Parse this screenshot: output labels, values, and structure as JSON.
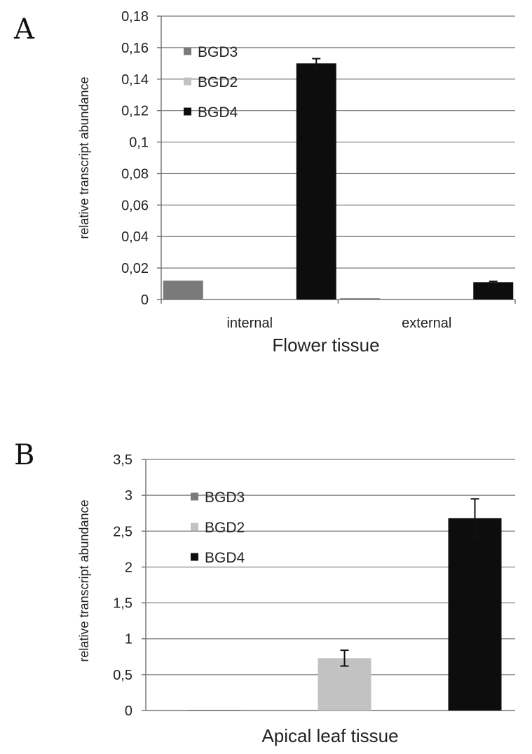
{
  "chart_data": [
    {
      "panel": "A",
      "type": "bar",
      "title": "",
      "xlabel": "Flower tissue",
      "ylabel": "relative transcript abundance",
      "ylim": [
        0,
        0.18
      ],
      "yticks": [
        "0",
        "0,02",
        "0,04",
        "0,06",
        "0,08",
        "0,1",
        "0,12",
        "0,14",
        "0,16",
        "0,18"
      ],
      "categories": [
        "internal",
        "external"
      ],
      "grid": true,
      "legend_position": "top-left",
      "series": [
        {
          "name": "BGD3",
          "color": "#7a7a7a",
          "values": [
            0.012,
            0.0008
          ],
          "errors": [
            0,
            0
          ]
        },
        {
          "name": "BGD2",
          "color": "#c2c2c2",
          "values": [
            0,
            0
          ],
          "errors": [
            0,
            0
          ]
        },
        {
          "name": "BGD4",
          "color": "#0d0d0d",
          "values": [
            0.15,
            0.011
          ],
          "errors": [
            0.003,
            0.0005
          ]
        }
      ]
    },
    {
      "panel": "B",
      "type": "bar",
      "title": "",
      "xlabel": "Apical leaf tissue",
      "ylabel": "relative transcript abundance",
      "ylim": [
        0,
        3.5
      ],
      "yticks": [
        "0",
        "0,5",
        "1",
        "1,5",
        "2",
        "2,5",
        "3",
        "3,5"
      ],
      "categories": [
        ""
      ],
      "grid": true,
      "legend_position": "top-left",
      "series": [
        {
          "name": "BGD3",
          "color": "#7a7a7a",
          "values": [
            0.01
          ],
          "errors": [
            0
          ]
        },
        {
          "name": "BGD2",
          "color": "#c2c2c2",
          "values": [
            0.73
          ],
          "errors": [
            0.11
          ]
        },
        {
          "name": "BGD4",
          "color": "#0d0d0d",
          "values": [
            2.68
          ],
          "errors": [
            0.27
          ]
        }
      ]
    }
  ]
}
